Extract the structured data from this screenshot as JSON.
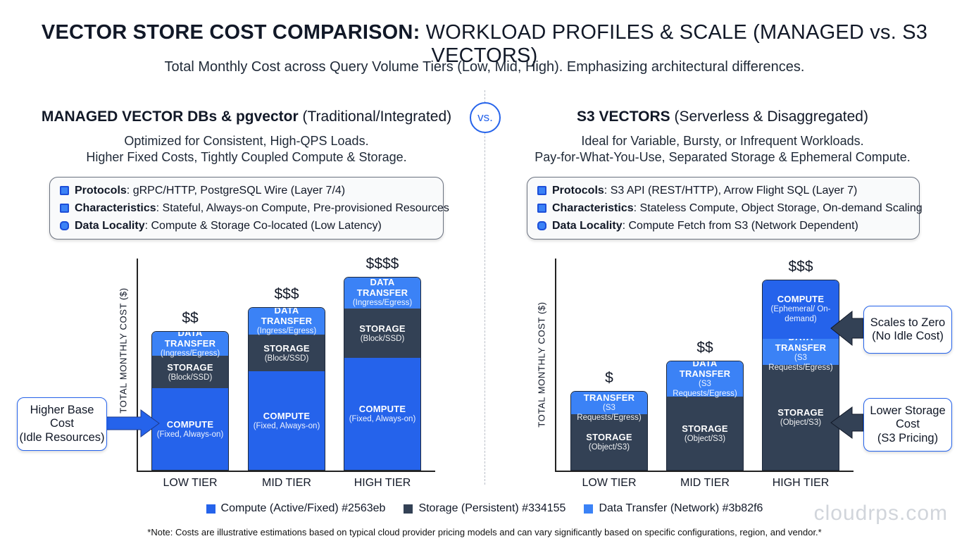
{
  "title": {
    "bold": "VECTOR STORE COST COMPARISON:",
    "rest": " WORKLOAD PROFILES & SCALE (MANAGED vs. S3 VECTORS)"
  },
  "subtitle": "Total Monthly Cost across Query Volume Tiers (Low, Mid, High). Emphasizing architectural differences.",
  "vs": "vs.",
  "left": {
    "title_bold": "MANAGED VECTOR DBs & pgvector",
    "title_rest": " (Traditional/Integrated)",
    "sub1": "Optimized for Consistent, High-QPS Loads.",
    "sub2": "Higher Fixed Costs, Tightly Coupled Compute & Storage.",
    "info": [
      {
        "icon": "chip-icon",
        "key": "Protocols",
        "val": ": gRPC/HTTP, PostgreSQL Wire (Layer 7/4)"
      },
      {
        "icon": "chip-icon",
        "key": "Characteristics",
        "val": ": Stateful, Always-on Compute, Pre-provisioned Resources"
      },
      {
        "icon": "database-icon",
        "key": "Data Locality",
        "val": ": Compute & Storage Co-located (Low Latency)"
      }
    ],
    "callout": [
      "Higher Base",
      "Cost",
      "(Idle Resources)"
    ]
  },
  "right": {
    "title_bold": "S3 VECTORS",
    "title_rest": " (Serverless & Disaggregated)",
    "sub1": "Ideal for Variable, Bursty, or Infrequent Workloads.",
    "sub2": "Pay-for-What-You-Use, Separated Storage & Ephemeral Compute.",
    "info": [
      {
        "icon": "chip-icon",
        "key": "Protocols",
        "val": ": S3 API (REST/HTTP), Arrow Flight SQL (Layer 7)"
      },
      {
        "icon": "chip-icon",
        "key": "Characteristics",
        "val": ": Stateless Compute, Object Storage, On-demand Scaling"
      },
      {
        "icon": "database-icon",
        "key": "Data Locality",
        "val": ": Compute Fetch from S3 (Network Dependent)"
      }
    ],
    "callout_top": [
      "Scales to Zero",
      "(No Idle Cost)"
    ],
    "callout_bottom": [
      "Lower Storage",
      "Cost",
      "(S3 Pricing)"
    ]
  },
  "colors": {
    "compute": "#2563eb",
    "storage": "#334155",
    "transfer": "#3b82f6"
  },
  "chart_data": [
    {
      "type": "bar",
      "stacked": true,
      "ylabel": "TOTAL MONTHLY COST ($)",
      "categories": [
        "LOW TIER",
        "MID TIER",
        "HIGH TIER"
      ],
      "cost_labels": [
        "$$",
        "$$$",
        "$$$$"
      ],
      "relative_scale": "illustrative, no numeric ticks",
      "series": [
        {
          "key": "compute",
          "label": "COMPUTE",
          "sub": "(Fixed, Always-on)",
          "values": [
            38,
            46,
            52
          ]
        },
        {
          "key": "storage",
          "label": "STORAGE",
          "sub": "(Block/SSD)",
          "values": [
            15,
            17,
            23
          ]
        },
        {
          "key": "transfer",
          "label": "DATA TRANSFER",
          "sub": "(Ingress/Egress)",
          "values": [
            12,
            13,
            15
          ]
        }
      ]
    },
    {
      "type": "bar",
      "stacked": true,
      "ylabel": "TOTAL MONTHLY COST ($)",
      "categories": [
        "LOW TIER",
        "MID TIER",
        "HIGH TIER"
      ],
      "cost_labels": [
        "$",
        "$$",
        "$$$"
      ],
      "relative_scale": "illustrative, no numeric ticks",
      "series": [
        {
          "key": "storage",
          "label": "STORAGE",
          "sub": "(Object/S3)",
          "values": [
            26,
            34,
            49
          ]
        },
        {
          "key": "transfer",
          "label": "DATA TRANSFER",
          "sub": "(S3 Requests/Egress)",
          "values": [
            11,
            17,
            12
          ]
        },
        {
          "key": "compute",
          "label": "COMPUTE",
          "sub": "(Ephemeral/ On-demand)",
          "values": [
            0,
            0,
            28
          ]
        }
      ]
    }
  ],
  "legend": [
    {
      "key": "compute",
      "text": "Compute (Active/Fixed) #2563eb"
    },
    {
      "key": "storage",
      "text": "Storage (Persistent) #334155"
    },
    {
      "key": "transfer",
      "text": "Data Transfer (Network) #3b82f6"
    }
  ],
  "note": "*Note: Costs are illustrative estimations based on typical cloud provider pricing models and can vary significantly based on specific configurations, region, and vendor.*",
  "watermark": "cloudrps.com"
}
